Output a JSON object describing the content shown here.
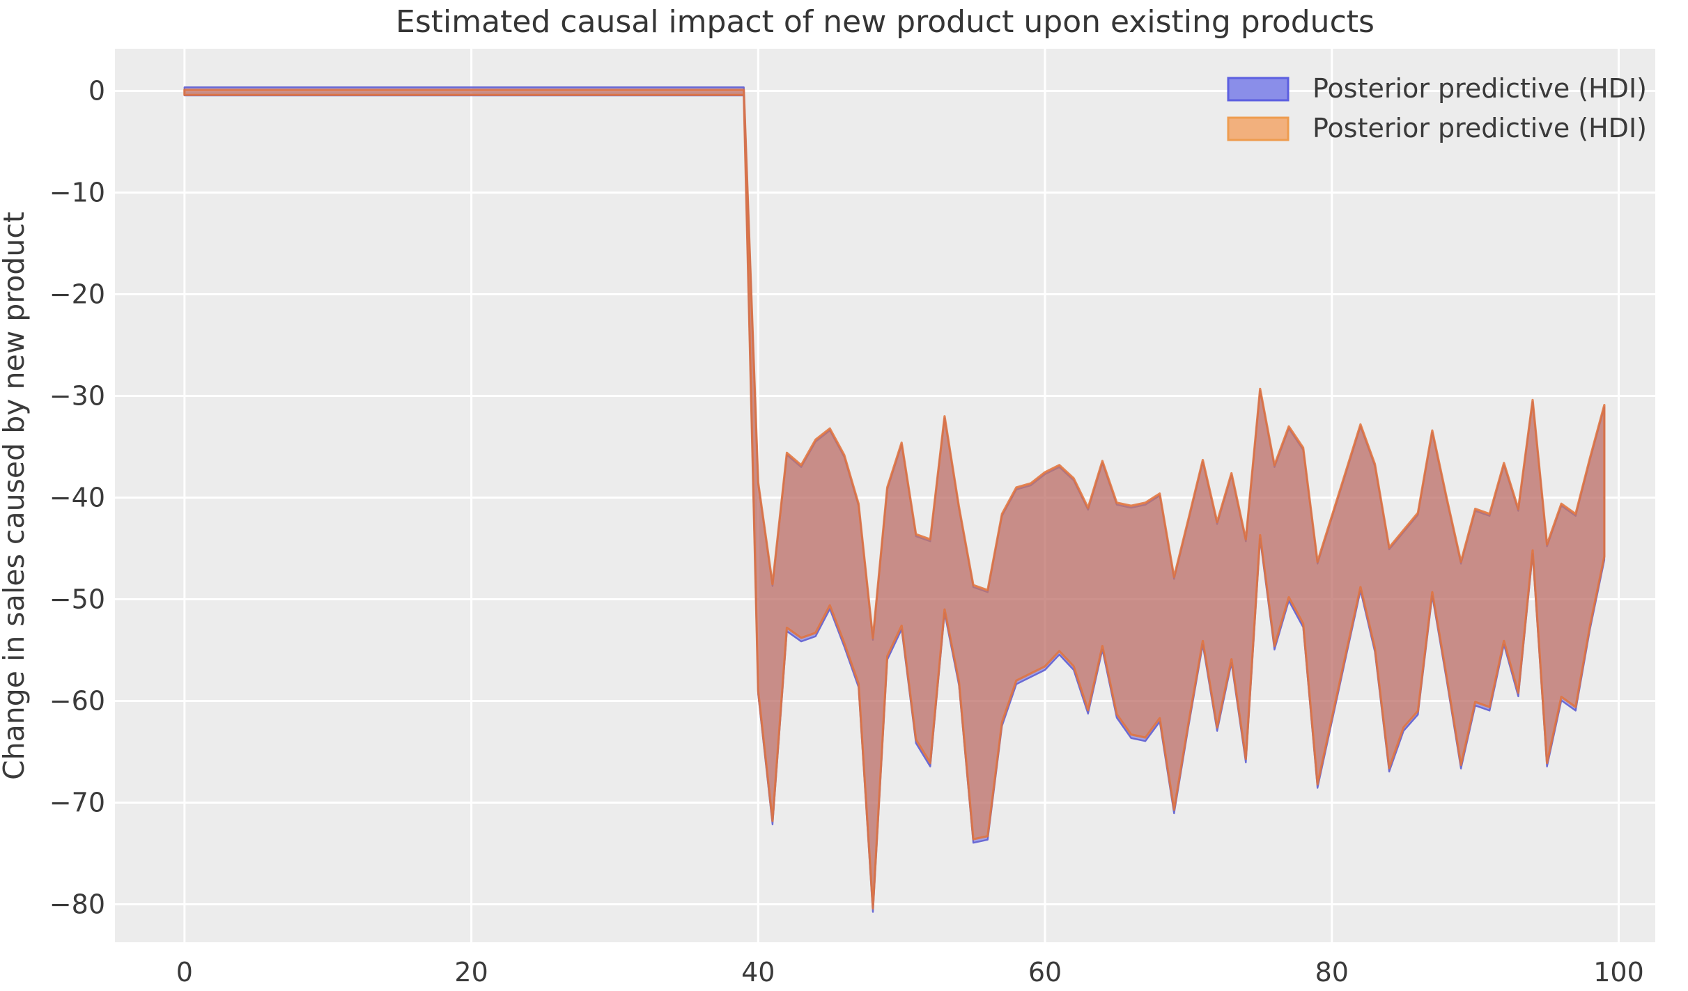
{
  "chart_data": {
    "type": "area",
    "title": "Estimated causal impact of new product upon existing products",
    "xlabel": "",
    "ylabel": "Change in sales caused by new product",
    "x_ticks": [
      0,
      20,
      40,
      60,
      80,
      100
    ],
    "x_tick_labels": [
      "0",
      "20",
      "40",
      "60",
      "80",
      "100"
    ],
    "y_ticks": [
      0,
      -10,
      -20,
      -30,
      -40,
      -50,
      -60,
      -70,
      -80
    ],
    "y_tick_labels": [
      "0",
      "−10",
      "−20",
      "−30",
      "−40",
      "−50",
      "−60",
      "−70",
      "−80"
    ],
    "xlim": [
      -4.85,
      102.55
    ],
    "ylim": [
      -83.73,
      4.14
    ],
    "grid": true,
    "background_color": "#ececec",
    "gridline_color": "#ffffff",
    "text_color": "#3a3a3a",
    "title_color": "#353535",
    "legend": {
      "position": "upper right",
      "entries": [
        {
          "label": "Posterior predictive (HDI)",
          "patch_fill": "#8a8ee9",
          "patch_border": "#5c5fe0"
        },
        {
          "label": "Posterior predictive (HDI)",
          "patch_fill": "#f2b07d",
          "patch_border": "#ee9c4f"
        }
      ]
    },
    "series": [
      {
        "name": "posterior-predictive-hdi-blue",
        "legend_label": "Posterior predictive (HDI)",
        "kind": "hdi-band",
        "fill": "rgba(70,72,220,0.45)",
        "stroke": "rgba(95,95,210,0.9)",
        "stroke_width": 2.4,
        "pre_period": {
          "x_start": 0,
          "x_end": 39,
          "upper": 0.35,
          "lower": -0.45
        },
        "post_offsets_from_orange": {
          "upper": -0.2,
          "lower": -0.35
        }
      },
      {
        "name": "posterior-predictive-hdi-orange",
        "legend_label": "Posterior predictive (HDI)",
        "kind": "hdi-band",
        "fill": "rgba(233,126,60,0.55)",
        "stroke": "rgba(226,115,60,0.85)",
        "stroke_width": 3.2,
        "pre_period": {
          "x_start": 0,
          "x_end": 39,
          "upper": 0.1,
          "lower": -0.4
        },
        "post_period": {
          "x_start": 40,
          "x_step": 1,
          "upper": [
            -38.5,
            -48.5,
            -35.6,
            -36.8,
            -34.3,
            -33.2,
            -35.8,
            -40.6,
            -53.8,
            -39.0,
            -34.6,
            -43.6,
            -44.1,
            -32.0,
            -40.9,
            -48.6,
            -49.1,
            -41.6,
            -39.0,
            -38.6,
            -37.5,
            -36.8,
            -38.1,
            -41.0,
            -36.4,
            -40.5,
            -40.8,
            -40.5,
            -39.6,
            -47.8,
            -42.1,
            -36.3,
            -42.4,
            -37.6,
            -44.1,
            -29.3,
            -36.8,
            -33.0,
            -35.1,
            -46.3,
            -41.8,
            -37.3,
            -32.8,
            -36.7,
            -44.9,
            -43.2,
            -41.5,
            -33.4,
            -40.0,
            -46.3,
            -41.1,
            -41.6,
            -36.6,
            -41.1,
            -30.4,
            -44.6,
            -40.6,
            -41.6,
            -36.1,
            -30.9
          ],
          "lower": [
            -59.0,
            -71.8,
            -52.8,
            -53.8,
            -53.3,
            -50.6,
            -54.3,
            -58.3,
            -80.4,
            -55.6,
            -52.6,
            -63.8,
            -66.1,
            -51.0,
            -58.1,
            -73.6,
            -73.3,
            -62.1,
            -58.0,
            -57.3,
            -56.6,
            -55.1,
            -56.6,
            -60.9,
            -54.6,
            -61.3,
            -63.3,
            -63.6,
            -61.7,
            -70.7,
            -62.2,
            -54.1,
            -62.6,
            -55.9,
            -65.7,
            -43.7,
            -54.6,
            -49.8,
            -52.4,
            -68.2,
            -61.7,
            -55.2,
            -48.8,
            -54.8,
            -66.6,
            -62.6,
            -61.0,
            -49.3,
            -57.6,
            -66.3,
            -60.1,
            -60.6,
            -54.1,
            -59.2,
            -45.2,
            -66.1,
            -59.6,
            -60.6,
            -52.6,
            -45.8
          ]
        }
      }
    ]
  },
  "layout_note": ""
}
